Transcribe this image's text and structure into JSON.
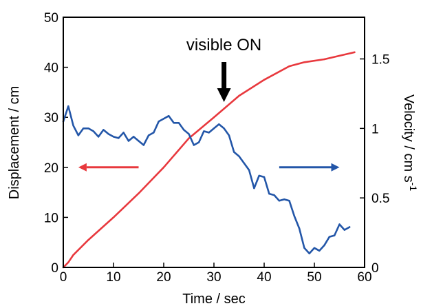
{
  "chart_data": {
    "type": "line",
    "xlabel": "Time / sec",
    "ylabel_left": "Displacement / cm",
    "ylabel_right": "Velocity / cm s",
    "ylabel_right_superscript": "-1",
    "xlim": [
      0,
      60
    ],
    "ylim_left": [
      0,
      50
    ],
    "ylim_right": [
      0,
      1.8
    ],
    "xticks": [
      "0",
      "10",
      "20",
      "30",
      "40",
      "50",
      "60"
    ],
    "yticks_left": [
      "0",
      "10",
      "20",
      "30",
      "40",
      "50"
    ],
    "yticks_right": [
      "0",
      "0.5",
      "1",
      "1.5"
    ],
    "grid": false,
    "annotation": {
      "text": "visible ON",
      "x": 32
    },
    "series": [
      {
        "axis": "left",
        "color": "#e8383d",
        "points": [
          [
            0,
            0
          ],
          [
            1,
            1
          ],
          [
            2,
            2.5
          ],
          [
            5,
            5.5
          ],
          [
            10,
            10
          ],
          [
            15,
            14.8
          ],
          [
            20,
            20
          ],
          [
            25,
            25.8
          ],
          [
            30,
            30
          ],
          [
            35,
            34.3
          ],
          [
            40,
            37.5
          ],
          [
            45,
            40.2
          ],
          [
            48,
            41
          ],
          [
            52,
            41.6
          ],
          [
            55,
            42.3
          ],
          [
            58,
            43
          ]
        ]
      },
      {
        "axis": "right",
        "color": "#2356a8",
        "points": [
          [
            0,
            1.05
          ],
          [
            1,
            1.16
          ],
          [
            2,
            1.02
          ],
          [
            3,
            0.95
          ],
          [
            4,
            1.0
          ],
          [
            5,
            1.0
          ],
          [
            6,
            0.98
          ],
          [
            7,
            0.94
          ],
          [
            8,
            0.99
          ],
          [
            9,
            0.96
          ],
          [
            10,
            0.94
          ],
          [
            11,
            0.93
          ],
          [
            12,
            0.97
          ],
          [
            13,
            0.91
          ],
          [
            14,
            0.94
          ],
          [
            15,
            0.91
          ],
          [
            16,
            0.88
          ],
          [
            17,
            0.95
          ],
          [
            18,
            0.97
          ],
          [
            19,
            1.05
          ],
          [
            20,
            1.07
          ],
          [
            21,
            1.09
          ],
          [
            22,
            1.04
          ],
          [
            23,
            1.04
          ],
          [
            24,
            0.99
          ],
          [
            25,
            0.96
          ],
          [
            26,
            0.88
          ],
          [
            27,
            0.9
          ],
          [
            28,
            0.98
          ],
          [
            29,
            0.97
          ],
          [
            30,
            1.0
          ],
          [
            31,
            1.03
          ],
          [
            32,
            1.0
          ],
          [
            33,
            0.95
          ],
          [
            34,
            0.83
          ],
          [
            35,
            0.8
          ],
          [
            36,
            0.75
          ],
          [
            37,
            0.7
          ],
          [
            38,
            0.57
          ],
          [
            39,
            0.66
          ],
          [
            40,
            0.65
          ],
          [
            41,
            0.53
          ],
          [
            42,
            0.52
          ],
          [
            43,
            0.48
          ],
          [
            44,
            0.49
          ],
          [
            45,
            0.48
          ],
          [
            46,
            0.37
          ],
          [
            47,
            0.28
          ],
          [
            48,
            0.14
          ],
          [
            49,
            0.1
          ],
          [
            50,
            0.14
          ],
          [
            51,
            0.12
          ],
          [
            52,
            0.16
          ],
          [
            53,
            0.22
          ],
          [
            54,
            0.23
          ],
          [
            55,
            0.31
          ],
          [
            56,
            0.27
          ],
          [
            57,
            0.29
          ]
        ]
      }
    ],
    "arrows": [
      {
        "direction": "left",
        "axis": "left",
        "x_from": 15,
        "x_to": 3,
        "y": 20,
        "color": "#e8383d"
      },
      {
        "direction": "right",
        "axis": "left",
        "x_from": 43,
        "x_to": 55,
        "y": 20,
        "color": "#2356a8"
      }
    ]
  }
}
